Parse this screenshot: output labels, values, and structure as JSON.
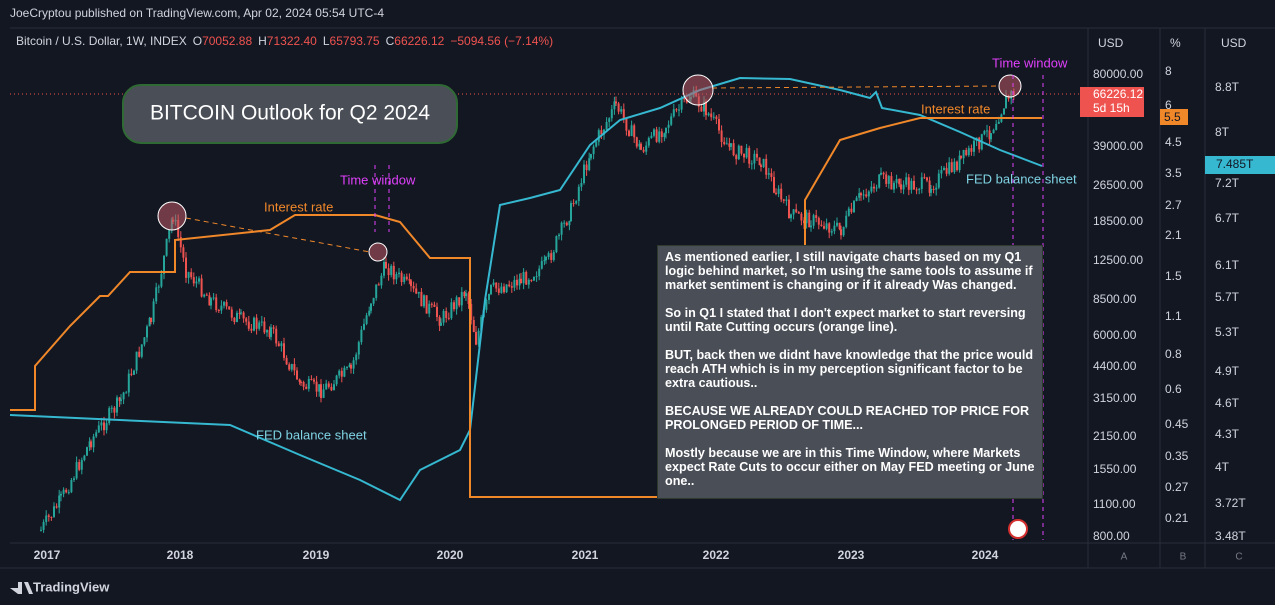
{
  "header": {
    "publisher": "JoeCryptou published on TradingView.com, Apr 02, 2024 05:54 UTC-4"
  },
  "legend": {
    "symbol": "Bitcoin / U.S. Dollar, 1W, INDEX",
    "open": {
      "label": "O",
      "value": "70052.88"
    },
    "high": {
      "label": "H",
      "value": "71322.40"
    },
    "low": {
      "label": "L",
      "value": "65793.75"
    },
    "close": {
      "label": "C",
      "value": "66226.12"
    },
    "change": "−5094.56 (−7.14%)"
  },
  "title": "BITCOIN Outlook for Q2 2024",
  "annotations": {
    "time_window_1": "Time window",
    "time_window_2": "Time window",
    "interest_rate_1": "Interest rate",
    "interest_rate_2": "Interest rate",
    "fed_1": "FED balance sheet",
    "fed_2": "FED balance sheet"
  },
  "note": {
    "paragraphs": [
      "As mentioned earlier, I still navigate charts based on my Q1 logic behind market, so I'm using the same tools to assume if market sentiment is changing or if it already Was changed.",
      "So in Q1 I stated that I don't expect market to start reversing until  Rate Cutting occurs (orange line).",
      "BUT, back then we didnt have knowledge that the price would reach ATH which is in my perception significant factor to be extra cautious..",
      "BECAUSE WE ALREADY COULD REACHED TOP PRICE FOR PROLONGED PERIOD OF TIME...",
      "Mostly because we are in this Time Window, where Markets expect Rate Cuts to occur either on May FED meeting or June one.."
    ]
  },
  "axes": {
    "price": {
      "header": "USD",
      "ticks": [
        "80000.00",
        "39000.00",
        "26500.00",
        "18500.00",
        "12500.00",
        "8500.00",
        "6000.00",
        "4400.00",
        "3150.00",
        "2150.00",
        "1550.00",
        "1100.00",
        "800.00"
      ],
      "current": "66226.12",
      "countdown": "5d 15h",
      "letter": "A"
    },
    "rate": {
      "header": "%",
      "ticks": [
        "8",
        "6",
        "4.5",
        "3.5",
        "2.7",
        "2.1",
        "1.5",
        "1.1",
        "0.8",
        "0.6",
        "0.45",
        "0.35",
        "0.27",
        "0.21"
      ],
      "current": "5.5",
      "letter": "B"
    },
    "fed": {
      "header": "USD",
      "ticks": [
        "8.8T",
        "8T",
        "7.2T",
        "6.7T",
        "6.1T",
        "5.7T",
        "5.3T",
        "4.9T",
        "4.6T",
        "4.3T",
        "4T",
        "3.72T",
        "3.48T"
      ],
      "current": "7.485T",
      "letter": "C"
    },
    "time": {
      "ticks": [
        "2017",
        "2018",
        "2019",
        "2020",
        "2021",
        "2022",
        "2023",
        "2024"
      ]
    }
  },
  "footer": {
    "brand": "TradingView"
  }
}
